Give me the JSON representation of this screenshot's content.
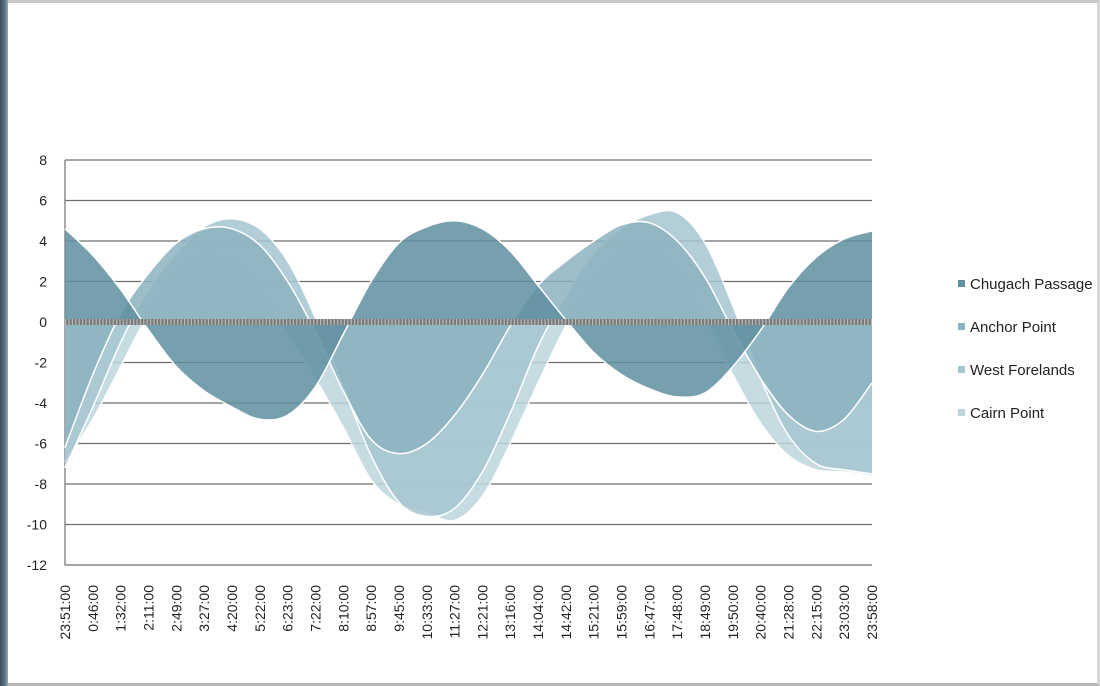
{
  "chart_data": {
    "type": "area",
    "title": "",
    "xlabel": "",
    "ylabel": "",
    "ylim": [
      -12,
      8
    ],
    "y_ticks": [
      "8",
      "6",
      "4",
      "2",
      "0",
      "-2",
      "-4",
      "-6",
      "-8",
      "-10",
      "-12"
    ],
    "grid": true,
    "legend_position": "right",
    "categories": [
      "23:51:00",
      "0:46:00",
      "1:32:00",
      "2:11:00",
      "2:49:00",
      "3:27:00",
      "4:20:00",
      "5:22:00",
      "6:23:00",
      "7:22:00",
      "8:10:00",
      "8:57:00",
      "9:45:00",
      "10:33:00",
      "11:27:00",
      "12:21:00",
      "13:16:00",
      "14:04:00",
      "14:42:00",
      "15:21:00",
      "15:59:00",
      "16:47:00",
      "17:48:00",
      "18:49:00",
      "19:50:00",
      "20:40:00",
      "21:28:00",
      "22:15:00",
      "23:03:00",
      "23:58:00"
    ],
    "series": [
      {
        "name": "Chugach Passage",
        "color": "#5f8fa0",
        "values": [
          4.6,
          3.3,
          1.6,
          -0.4,
          -2.2,
          -3.4,
          -4.2,
          -4.8,
          -4.6,
          -3.2,
          -0.6,
          2.0,
          3.9,
          4.7,
          5.0,
          4.6,
          3.5,
          1.8,
          0.1,
          -1.5,
          -2.6,
          -3.3,
          -3.7,
          -3.5,
          -2.2,
          -0.4,
          1.7,
          3.2,
          4.1,
          4.5
        ]
      },
      {
        "name": "Anchor Point",
        "color": "#8cb3c0",
        "values": [
          -6.2,
          -2.6,
          0.4,
          2.4,
          3.9,
          4.6,
          4.6,
          3.8,
          2.0,
          -0.5,
          -3.4,
          -5.8,
          -6.5,
          -6.0,
          -4.6,
          -2.6,
          -0.2,
          1.8,
          3.0,
          4.0,
          4.8,
          4.9,
          4.0,
          2.2,
          -0.4,
          -2.8,
          -4.6,
          -5.4,
          -4.8,
          -3.0
        ]
      },
      {
        "name": "West Forelands",
        "color": "#a6c6d0",
        "values": [
          -7.2,
          -4.2,
          -1.0,
          1.6,
          3.4,
          4.7,
          5.1,
          4.6,
          3.0,
          0.2,
          -3.2,
          -6.6,
          -8.9,
          -9.6,
          -9.2,
          -7.4,
          -4.5,
          -1.2,
          1.3,
          3.4,
          4.6,
          5.3,
          5.4,
          3.9,
          0.8,
          -2.8,
          -5.6,
          -7.0,
          -7.3,
          -7.5
        ]
      },
      {
        "name": "Cairn Point",
        "color": "#bcd5dd",
        "values": [
          -6.9,
          -4.8,
          -2.2,
          0.4,
          2.4,
          3.3,
          3.0,
          1.6,
          -0.6,
          -2.8,
          -5.2,
          -7.8,
          -9.0,
          -9.4,
          -9.8,
          -8.6,
          -6.0,
          -3.0,
          -0.2,
          2.0,
          3.4,
          3.6,
          2.4,
          0.2,
          -2.6,
          -5.0,
          -6.6,
          -7.3,
          -7.4,
          -7.6
        ]
      }
    ]
  }
}
